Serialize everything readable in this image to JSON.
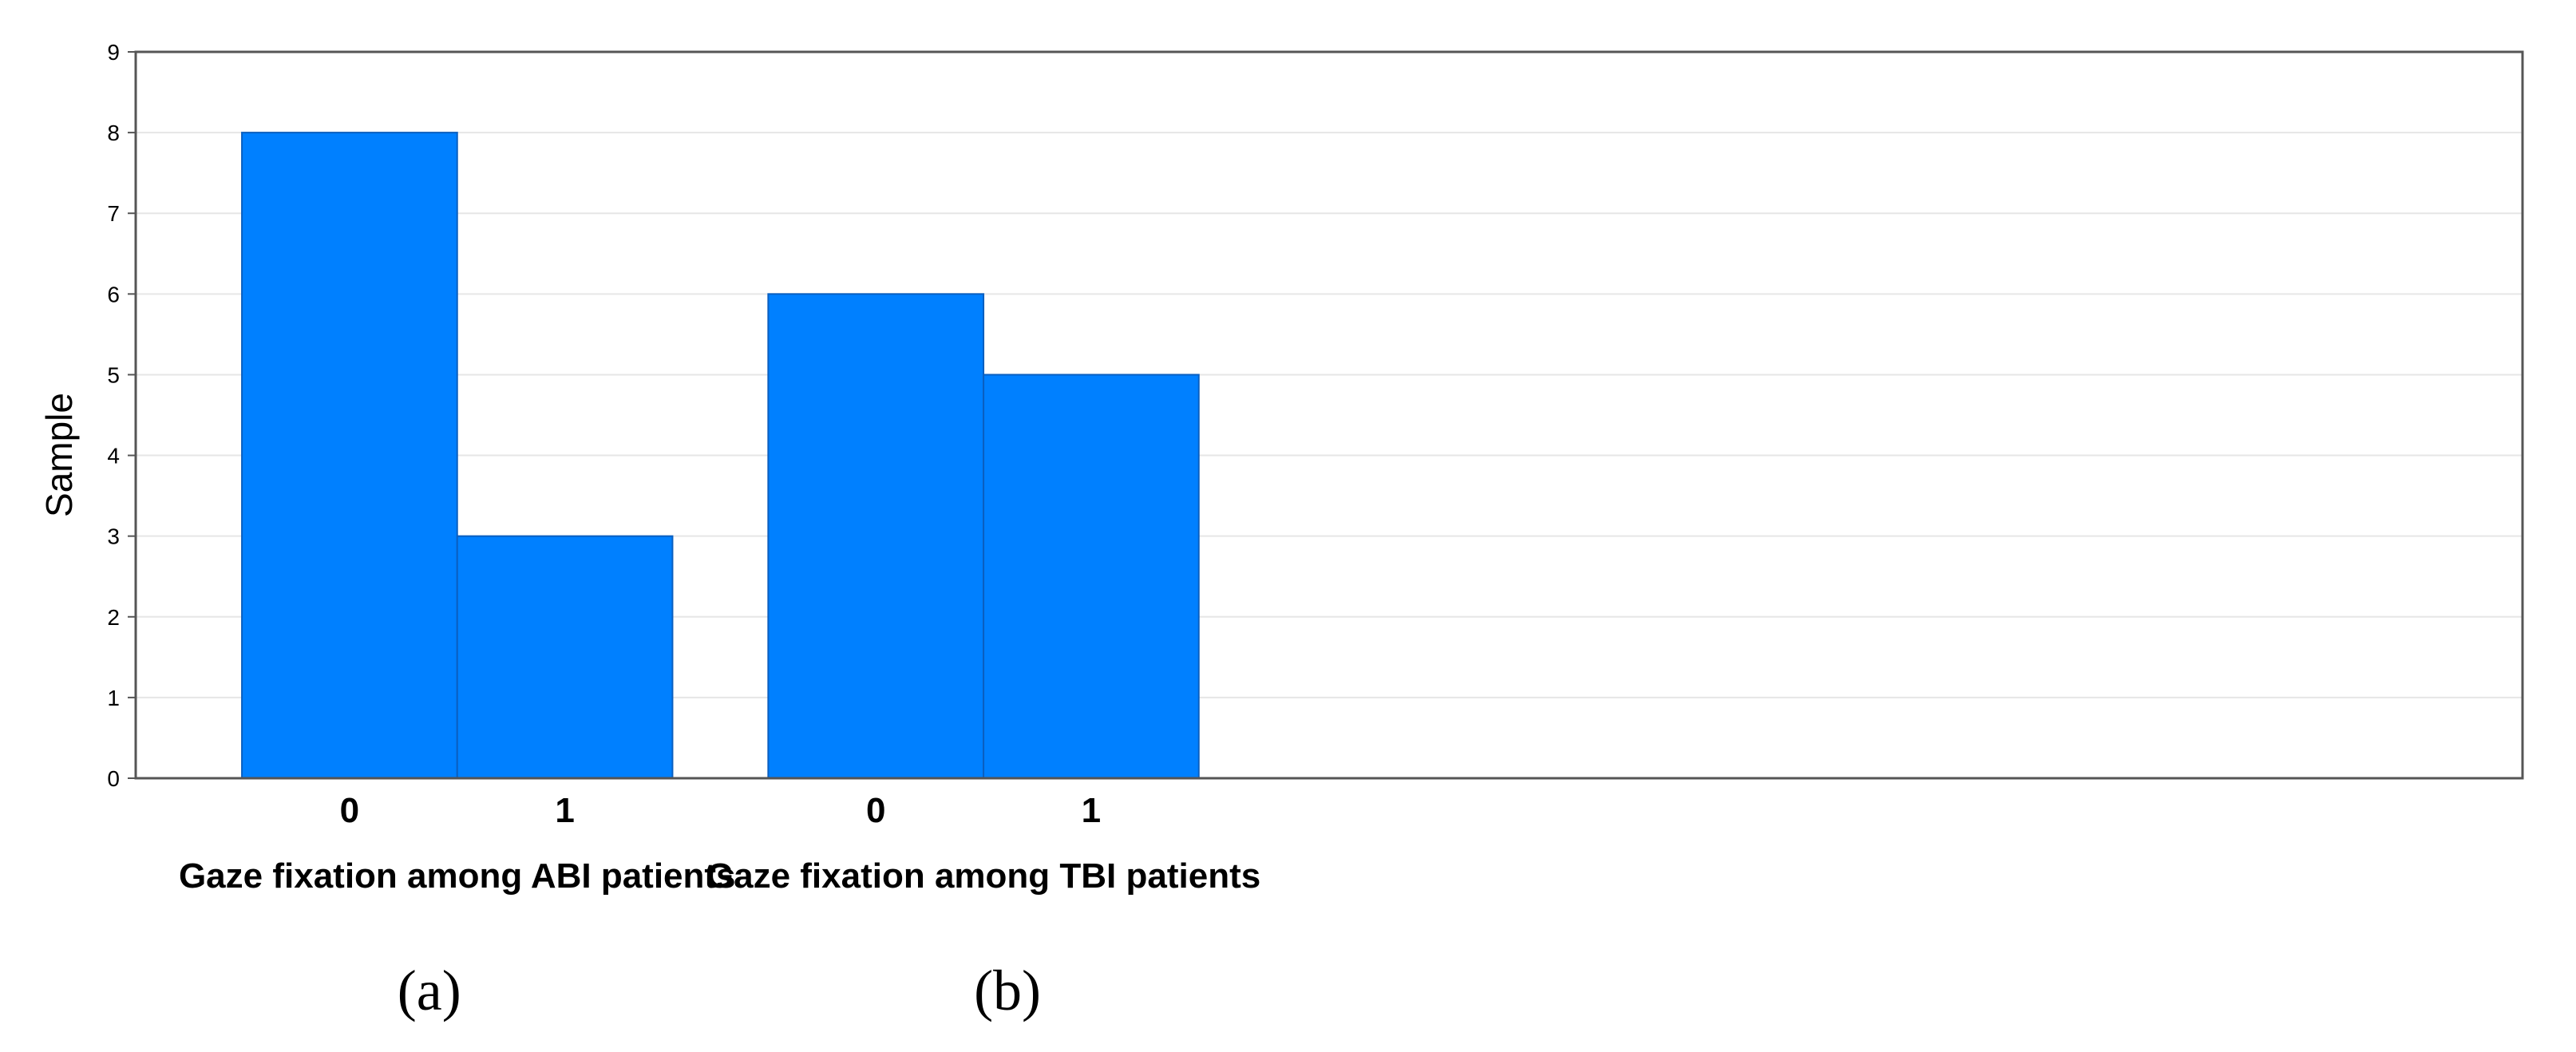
{
  "chart_data": {
    "type": "bar",
    "ylabel": "Sample",
    "ylim": [
      0,
      9
    ],
    "yticks": [
      "0",
      "1",
      "2",
      "3",
      "4",
      "5",
      "6",
      "7",
      "8",
      "9"
    ],
    "grid": true,
    "groups": [
      {
        "xlabel": "Gaze fixation among ABI patients",
        "panel_label": "(a)",
        "categories": [
          "0",
          "1"
        ],
        "values": [
          8,
          3
        ]
      },
      {
        "xlabel": "Gaze fixation among TBI patients",
        "panel_label": "(b)",
        "categories": [
          "0",
          "1"
        ],
        "values": [
          6,
          5
        ]
      }
    ],
    "colors": {
      "bar": "#0080ff",
      "bar_edge": "#0a5fc0",
      "grid": "#e6e6e6",
      "axis": "#555555"
    }
  }
}
